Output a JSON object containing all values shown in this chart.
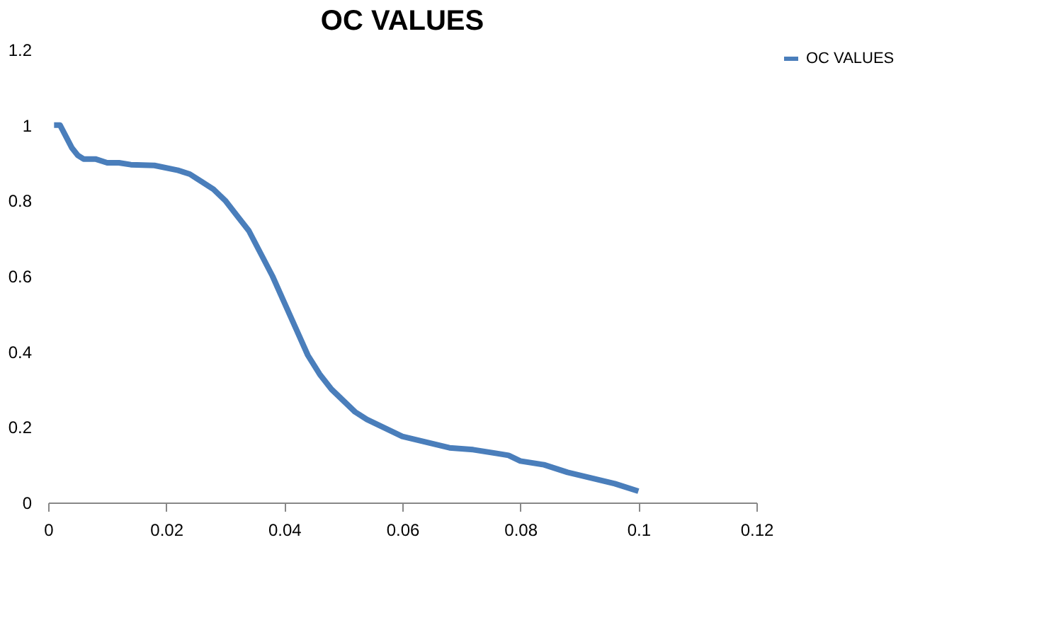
{
  "chart_data": {
    "type": "line",
    "title": "OC VALUES",
    "x": [
      0.001,
      0.002,
      0.003,
      0.004,
      0.005,
      0.006,
      0.008,
      0.01,
      0.012,
      0.014,
      0.018,
      0.022,
      0.024,
      0.026,
      0.028,
      0.03,
      0.032,
      0.034,
      0.036,
      0.038,
      0.04,
      0.042,
      0.044,
      0.046,
      0.048,
      0.05,
      0.052,
      0.054,
      0.056,
      0.058,
      0.06,
      0.064,
      0.068,
      0.072,
      0.076,
      0.078,
      0.08,
      0.084,
      0.088,
      0.092,
      0.096,
      0.1
    ],
    "series": [
      {
        "name": "OC VALUES",
        "color": "#4a7ebb",
        "values": [
          1.0,
          1.0,
          0.97,
          0.94,
          0.92,
          0.91,
          0.91,
          0.9,
          0.9,
          0.895,
          0.893,
          0.88,
          0.87,
          0.85,
          0.83,
          0.8,
          0.76,
          0.72,
          0.66,
          0.6,
          0.53,
          0.46,
          0.39,
          0.34,
          0.3,
          0.27,
          0.24,
          0.22,
          0.205,
          0.19,
          0.175,
          0.16,
          0.145,
          0.14,
          0.13,
          0.125,
          0.11,
          0.1,
          0.08,
          0.065,
          0.05,
          0.03
        ]
      }
    ],
    "xlim": [
      0,
      0.12
    ],
    "xticks": [
      0,
      0.02,
      0.04,
      0.06,
      0.08,
      0.1,
      0.12
    ],
    "ylim": [
      0,
      1.2
    ],
    "yticks": [
      0,
      0.2,
      0.4,
      0.6,
      0.8,
      1,
      1.2
    ],
    "grid": false,
    "legend": "right",
    "marker": "none",
    "line_style": "solid"
  }
}
